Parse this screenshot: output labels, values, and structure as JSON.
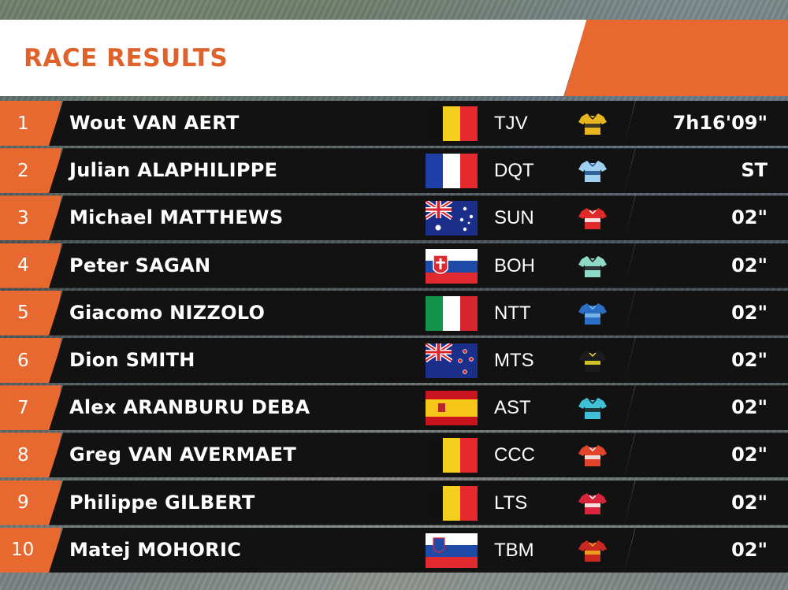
{
  "header": {
    "title": "RACE RESULTS"
  },
  "results": [
    {
      "rank": "1",
      "name": "Wout VAN AERT",
      "flag": "belgium",
      "team": "TJV",
      "jersey_icon": "jersey-yellow-black",
      "jersey_color": "#e6b51f",
      "jersey_accent": "#222222",
      "time": "7h16'09\""
    },
    {
      "rank": "2",
      "name": "Julian ALAPHILIPPE",
      "flag": "france",
      "team": "DQT",
      "jersey_icon": "jersey-light-blue",
      "jersey_color": "#9fd0f0",
      "jersey_accent": "#1e4f8a",
      "time": "ST"
    },
    {
      "rank": "3",
      "name": "Michael MATTHEWS",
      "flag": "australia",
      "team": "SUN",
      "jersey_icon": "jersey-red-white",
      "jersey_color": "#e0292b",
      "jersey_accent": "#ffffff",
      "time": "02\""
    },
    {
      "rank": "4",
      "name": "Peter SAGAN",
      "flag": "slovakia",
      "team": "BOH",
      "jersey_icon": "jersey-mint",
      "jersey_color": "#8fd9c7",
      "jersey_accent": "#1a1a1a",
      "time": "02\""
    },
    {
      "rank": "5",
      "name": "Giacomo NIZZOLO",
      "flag": "italy",
      "team": "NTT",
      "jersey_icon": "jersey-blue",
      "jersey_color": "#2b6fc4",
      "jersey_accent": "#7fc0f0",
      "time": "02\""
    },
    {
      "rank": "6",
      "name": "Dion SMITH",
      "flag": "new-zealand",
      "team": "MTS",
      "jersey_icon": "jersey-black-yellow",
      "jersey_color": "#1b1b1b",
      "jersey_accent": "#f0e02a",
      "time": "02\""
    },
    {
      "rank": "7",
      "name": "Alex ARANBURU DEBA",
      "flag": "spain",
      "team": "AST",
      "jersey_icon": "jersey-turquoise",
      "jersey_color": "#3fc2d8",
      "jersey_accent": "#1e1e1e",
      "time": "02\""
    },
    {
      "rank": "8",
      "name": "Greg VAN AVERMAET",
      "flag": "belgium",
      "team": "CCC",
      "jersey_icon": "jersey-orange-red",
      "jersey_color": "#e2452a",
      "jersey_accent": "#f2f2f2",
      "time": "02\""
    },
    {
      "rank": "9",
      "name": "Philippe GILBERT",
      "flag": "belgium",
      "team": "LTS",
      "jersey_icon": "jersey-red-white-band",
      "jersey_color": "#d8243a",
      "jersey_accent": "#ffffff",
      "time": "02\""
    },
    {
      "rank": "10",
      "name": "Matej MOHORIC",
      "flag": "slovenia",
      "team": "TBM",
      "jersey_icon": "jersey-red-gold",
      "jersey_color": "#c8281e",
      "jersey_accent": "#f2b120",
      "time": "02\""
    }
  ],
  "colors": {
    "accent": "#e8692f",
    "bar": "#121212",
    "title": "#e0622b"
  }
}
